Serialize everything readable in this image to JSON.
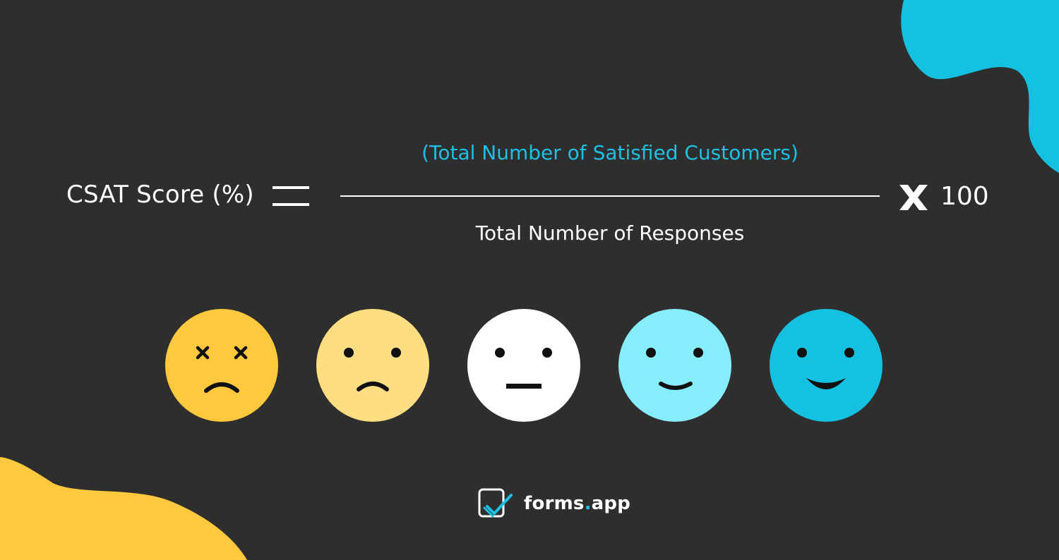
{
  "formula": {
    "lhs_label": "CSAT Score (%)",
    "numerator": "(Total Number of Satisfied Customers)",
    "denominator": "Total Number of Responses",
    "multiplier": "100"
  },
  "rating_faces": [
    {
      "mood": "very-dissatisfied",
      "color": "#ffc83d",
      "icon": "dizzy-frown-face-icon"
    },
    {
      "mood": "dissatisfied",
      "color": "#fedd83",
      "icon": "frown-face-icon"
    },
    {
      "mood": "neutral",
      "color": "#ffffff",
      "icon": "neutral-face-icon"
    },
    {
      "mood": "satisfied",
      "color": "#86edfc",
      "icon": "slight-smile-face-icon"
    },
    {
      "mood": "very-satisfied",
      "color": "#15c1e0",
      "icon": "big-smile-face-icon"
    }
  ],
  "brand": {
    "name_part1": "forms",
    "name_dot": ".",
    "name_part2": "app"
  },
  "colors": {
    "background": "#2e2e2e",
    "accent_cyan": "#15c1e0",
    "accent_yellow": "#ffc83d",
    "text": "#ffffff"
  }
}
